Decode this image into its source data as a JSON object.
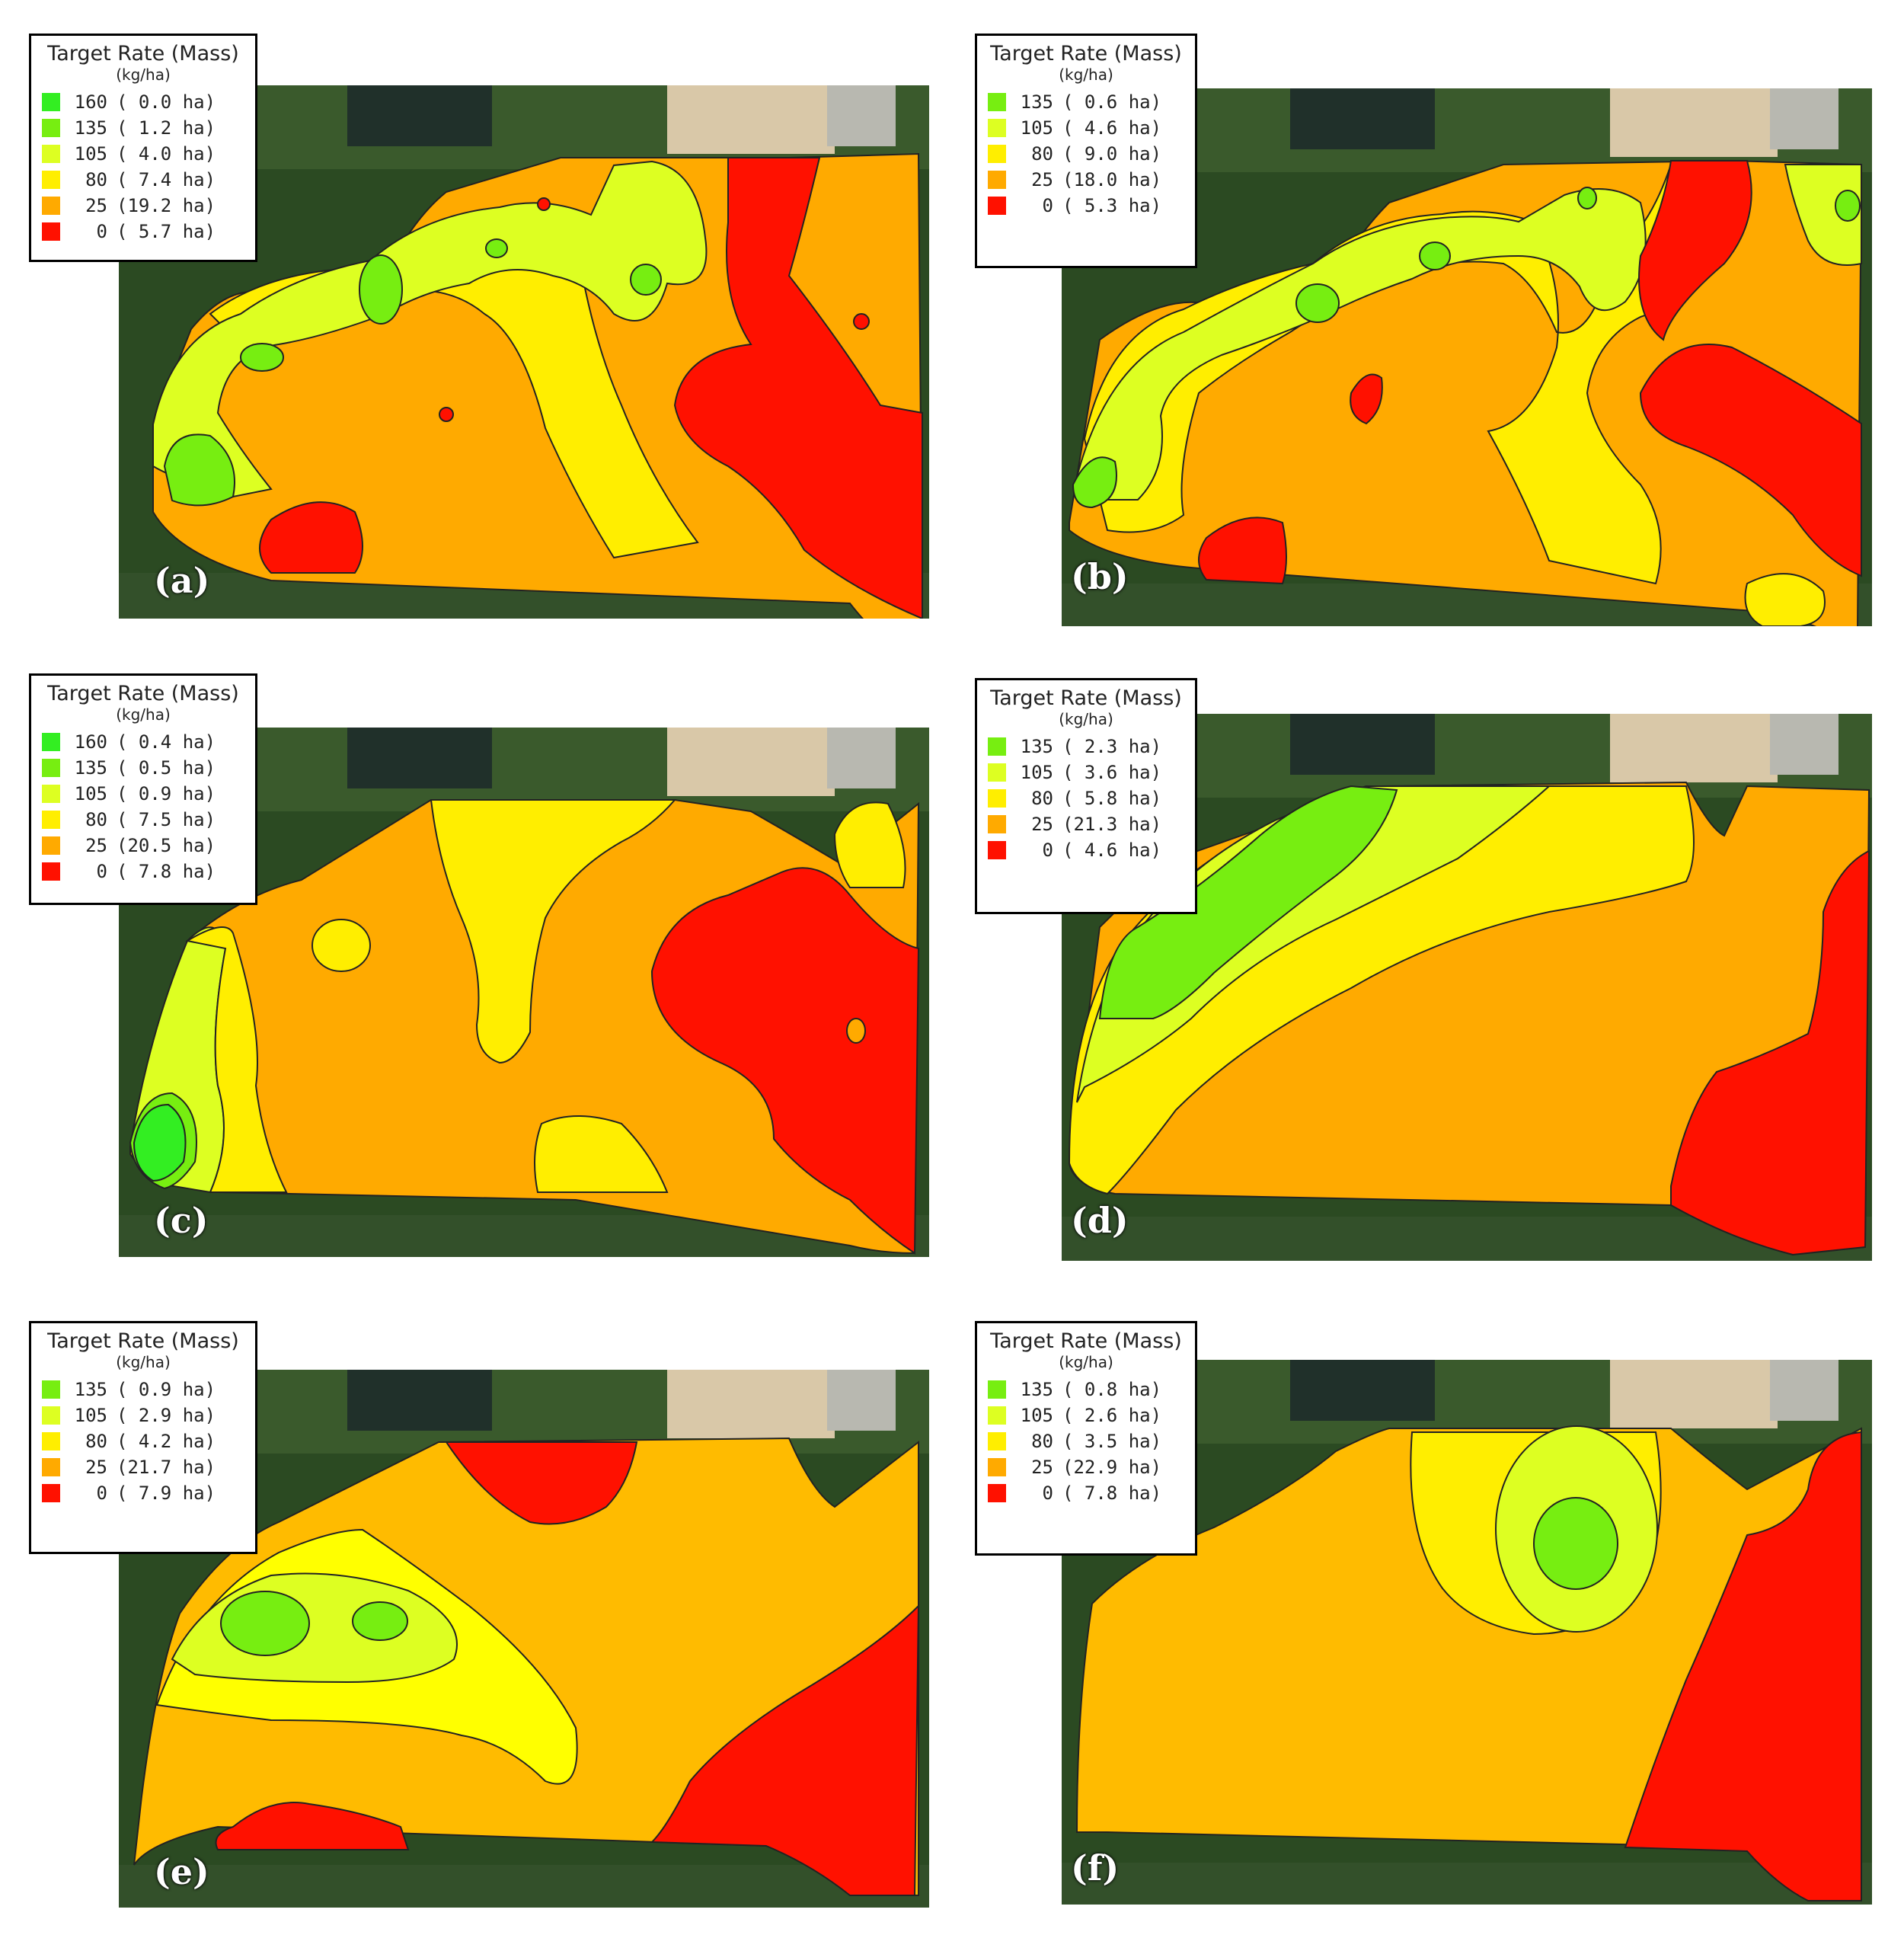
{
  "colors": {
    "rate_160": "#33ee22",
    "rate_135": "#77ee11",
    "rate_105": "#ddff22",
    "rate_80": "#ffee00",
    "rate_25": "#ffaa00",
    "rate_0": "#ff1100"
  },
  "panels": [
    {
      "label": "(a)",
      "legend": {
        "title": "Target Rate (Mass)",
        "unit": "(kg/ha)",
        "rows": [
          {
            "rate": "160",
            "area": "( 0.0 ha)",
            "color": "rate_160"
          },
          {
            "rate": "135",
            "area": "( 1.2 ha)",
            "color": "rate_135"
          },
          {
            "rate": "105",
            "area": "( 4.0 ha)",
            "color": "rate_105"
          },
          {
            "rate": "80",
            "area": "( 7.4 ha)",
            "color": "rate_80"
          },
          {
            "rate": "25",
            "area": "(19.2 ha)",
            "color": "rate_25"
          },
          {
            "rate": "0",
            "area": "( 5.7 ha)",
            "color": "rate_0"
          }
        ]
      }
    },
    {
      "label": "(b)",
      "legend": {
        "title": "Target Rate (Mass)",
        "unit": "(kg/ha)",
        "rows": [
          {
            "rate": "135",
            "area": "( 0.6 ha)",
            "color": "rate_135"
          },
          {
            "rate": "105",
            "area": "( 4.6 ha)",
            "color": "rate_105"
          },
          {
            "rate": "80",
            "area": "( 9.0 ha)",
            "color": "rate_80"
          },
          {
            "rate": "25",
            "area": "(18.0 ha)",
            "color": "rate_25"
          },
          {
            "rate": "0",
            "area": "( 5.3 ha)",
            "color": "rate_0"
          }
        ]
      }
    },
    {
      "label": "(c)",
      "legend": {
        "title": "Target Rate (Mass)",
        "unit": "(kg/ha)",
        "rows": [
          {
            "rate": "160",
            "area": "( 0.4 ha)",
            "color": "rate_160"
          },
          {
            "rate": "135",
            "area": "( 0.5 ha)",
            "color": "rate_135"
          },
          {
            "rate": "105",
            "area": "( 0.9 ha)",
            "color": "rate_105"
          },
          {
            "rate": "80",
            "area": "( 7.5 ha)",
            "color": "rate_80"
          },
          {
            "rate": "25",
            "area": "(20.5 ha)",
            "color": "rate_25"
          },
          {
            "rate": "0",
            "area": "( 7.8 ha)",
            "color": "rate_0"
          }
        ]
      }
    },
    {
      "label": "(d)",
      "legend": {
        "title": "Target Rate (Mass)",
        "unit": "(kg/ha)",
        "rows": [
          {
            "rate": "135",
            "area": "( 2.3 ha)",
            "color": "rate_135"
          },
          {
            "rate": "105",
            "area": "( 3.6 ha)",
            "color": "rate_105"
          },
          {
            "rate": "80",
            "area": "( 5.8 ha)",
            "color": "rate_80"
          },
          {
            "rate": "25",
            "area": "(21.3 ha)",
            "color": "rate_25"
          },
          {
            "rate": "0",
            "area": "( 4.6 ha)",
            "color": "rate_0"
          }
        ]
      }
    },
    {
      "label": "(e)",
      "legend": {
        "title": "Target Rate (Mass)",
        "unit": "(kg/ha)",
        "rows": [
          {
            "rate": "135",
            "area": "( 0.9 ha)",
            "color": "rate_135"
          },
          {
            "rate": "105",
            "area": "( 2.9 ha)",
            "color": "rate_105"
          },
          {
            "rate": "80",
            "area": "( 4.2 ha)",
            "color": "rate_80"
          },
          {
            "rate": "25",
            "area": "(21.7 ha)",
            "color": "rate_25"
          },
          {
            "rate": "0",
            "area": "( 7.9 ha)",
            "color": "rate_0"
          }
        ]
      }
    },
    {
      "label": "(f)",
      "legend": {
        "title": "Target Rate (Mass)",
        "unit": "(kg/ha)",
        "rows": [
          {
            "rate": "135",
            "area": "( 0.8 ha)",
            "color": "rate_135"
          },
          {
            "rate": "105",
            "area": "( 2.6 ha)",
            "color": "rate_105"
          },
          {
            "rate": "80",
            "area": "( 3.5 ha)",
            "color": "rate_80"
          },
          {
            "rate": "25",
            "area": "(22.9 ha)",
            "color": "rate_25"
          },
          {
            "rate": "0",
            "area": "( 7.8 ha)",
            "color": "rate_0"
          }
        ]
      }
    }
  ]
}
